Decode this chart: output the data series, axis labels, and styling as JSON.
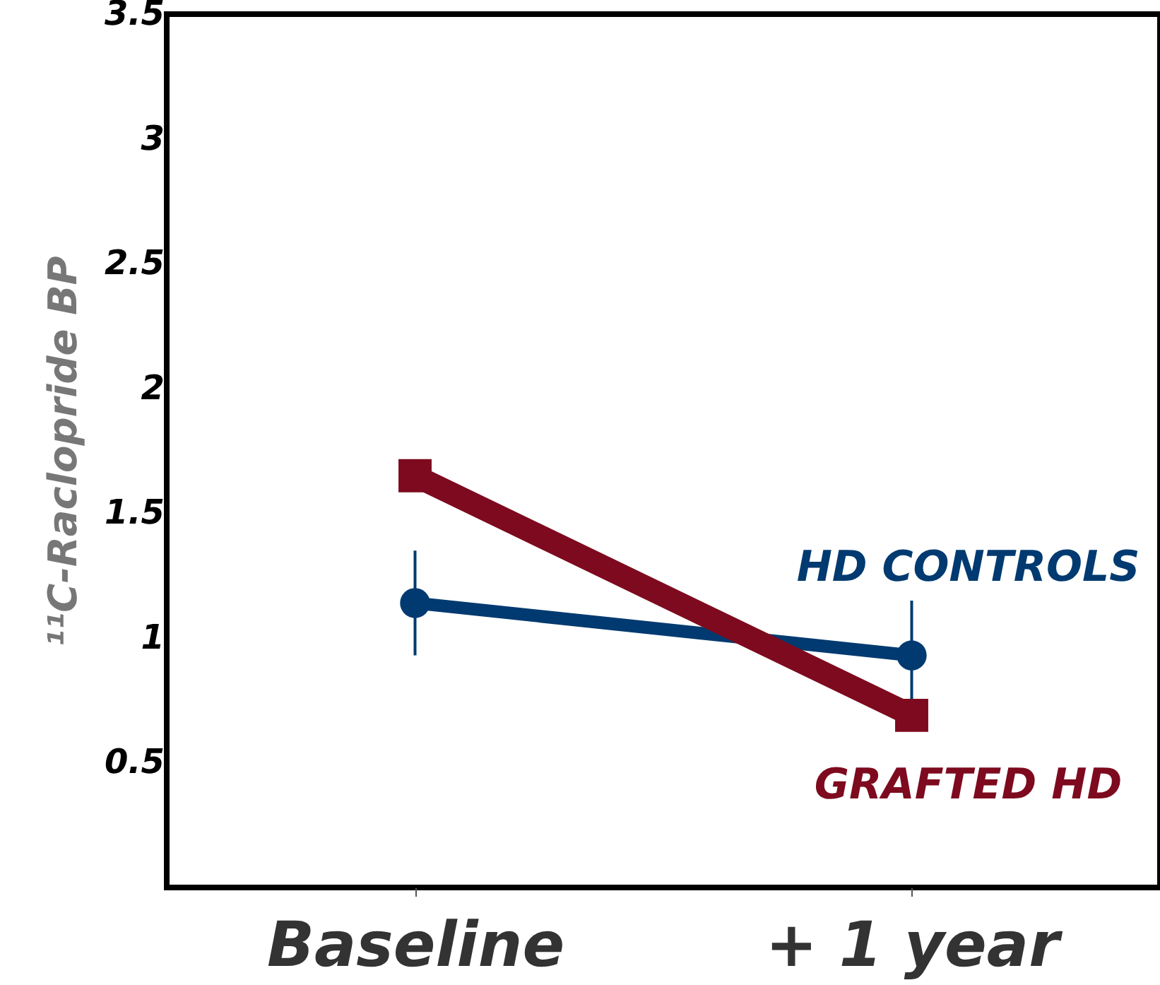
{
  "chart_data": {
    "type": "line",
    "ylabel": "¹¹C-Raclopride BP",
    "categories": [
      "Baseline",
      "+ 1 year"
    ],
    "ylim": [
      0,
      3.5
    ],
    "yticks": [
      0.5,
      1,
      1.5,
      2,
      2.5,
      3,
      3.5
    ],
    "grid": false,
    "legend": false,
    "series": [
      {
        "name": "HD CONTROLS",
        "color": "#003a70",
        "values": [
          1.14,
          0.93
        ],
        "errors": [
          0.21,
          0.22
        ],
        "marker": "circle"
      },
      {
        "name": "GRAFTED HD",
        "color": "#7d0a1e",
        "values": [
          1.65,
          0.69
        ],
        "marker": "square"
      }
    ]
  }
}
